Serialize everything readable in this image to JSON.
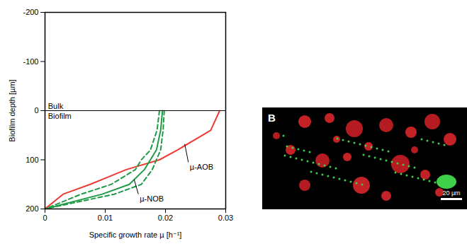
{
  "chart_data": {
    "type": "line",
    "xlabel": "Specific growth rate µ [h⁻¹]",
    "ylabel": "Biofilm depth [µm]",
    "xlim": [
      0,
      0.03
    ],
    "xticks": [
      0,
      0.01,
      0.02,
      0.03
    ],
    "ylim": [
      -200,
      200
    ],
    "yticks": [
      -200,
      -100,
      0,
      100,
      200
    ],
    "divider": 0,
    "y": [
      0,
      40,
      80,
      100,
      120,
      150,
      170,
      200
    ],
    "series": [
      {
        "name": "µ-AOB",
        "color": "#ec3b32",
        "line_style": "solid",
        "values": [
          0.029,
          0.0275,
          0.022,
          0.019,
          0.0135,
          0.0075,
          0.003,
          0
        ]
      },
      {
        "name": "µ-NOB",
        "color": "#1f9a45",
        "line_style": "solid",
        "values": [
          0.0195,
          0.0192,
          0.0185,
          0.0175,
          0.0165,
          0.014,
          0.0095,
          0
        ]
      },
      {
        "color": "#1f9a45",
        "line_style": "dashed",
        "values": [
          0.0198,
          0.0196,
          0.0192,
          0.0185,
          0.0178,
          0.016,
          0.0115,
          0
        ]
      },
      {
        "color": "#1f9a45",
        "line_style": "dashed",
        "values": [
          0.019,
          0.0186,
          0.0175,
          0.016,
          0.015,
          0.011,
          0.006,
          0
        ]
      }
    ],
    "annotations": [
      {
        "text": "Bulk",
        "x": 0.0005,
        "y": -8
      },
      {
        "text": "Biofilm",
        "x": 0.0005,
        "y": 12
      },
      {
        "text": "µ-AOB",
        "x": 0.0238,
        "y": 105,
        "point": [
          0.0232,
          68
        ]
      },
      {
        "text": "µ-NOB",
        "x": 0.0155,
        "y": 170,
        "point": [
          0.0148,
          140
        ]
      }
    ]
  },
  "image": {
    "panel_label": "B",
    "scale_bar": "20 µm"
  }
}
